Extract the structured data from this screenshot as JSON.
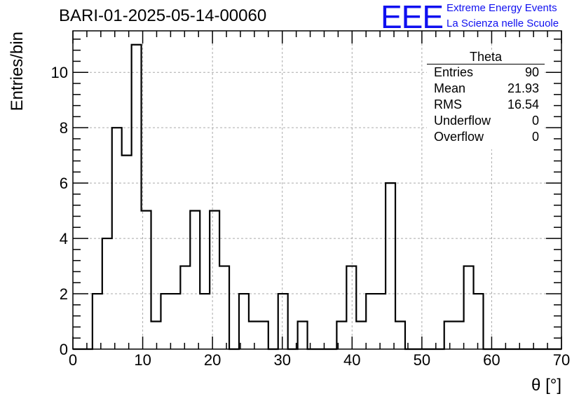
{
  "title": "BARI-01-2025-05-14-00060",
  "logo": {
    "mark": "EEE",
    "line1": "Extreme Energy Events",
    "line2": "La Scienza nelle Scuole",
    "color": "#1010f0"
  },
  "stats": {
    "name": "Theta",
    "rows": [
      {
        "key": "Entries",
        "value": "90"
      },
      {
        "key": "Mean",
        "value": "21.93"
      },
      {
        "key": "RMS",
        "value": "16.54"
      },
      {
        "key": "Underflow",
        "value": "0"
      },
      {
        "key": "Overflow",
        "value": "0"
      }
    ]
  },
  "chart_data": {
    "type": "bar",
    "style": "step-histogram",
    "xlabel": "θ [°]",
    "ylabel": "Entries/bin",
    "xlim": [
      0,
      70
    ],
    "ylim": [
      0,
      11.5
    ],
    "x_ticks": [
      0,
      10,
      20,
      30,
      40,
      50,
      60,
      70
    ],
    "y_ticks": [
      0,
      2,
      4,
      6,
      8,
      10
    ],
    "grid": true,
    "bin_width": 1.4,
    "bin_edges": [
      0,
      1.4,
      2.8,
      4.2,
      5.6,
      7,
      8.4,
      9.8,
      11.2,
      12.6,
      14,
      15.4,
      16.8,
      18.2,
      19.6,
      21,
      22.4,
      23.8,
      25.2,
      26.6,
      28,
      29.4,
      30.8,
      32.2,
      33.6,
      35,
      36.4,
      37.8,
      39.2,
      40.6,
      42,
      43.4,
      44.8,
      46.2,
      47.6,
      49,
      50.4,
      51.8,
      53.2,
      54.6,
      56,
      57.4,
      58.8,
      60.2,
      61.6,
      63,
      64.4,
      65.8,
      67.2,
      68.6,
      70
    ],
    "values": [
      0,
      0,
      2,
      4,
      8,
      7,
      11,
      5,
      1,
      2,
      2,
      3,
      5,
      2,
      5,
      3,
      0,
      2,
      1,
      1,
      0,
      2,
      0,
      1,
      0,
      0,
      0,
      1,
      3,
      1,
      2,
      2,
      6,
      1,
      0,
      0,
      0,
      0,
      1,
      1,
      3,
      2,
      0,
      0,
      0,
      0,
      0,
      0,
      0,
      0
    ],
    "line_color": "#000000"
  }
}
